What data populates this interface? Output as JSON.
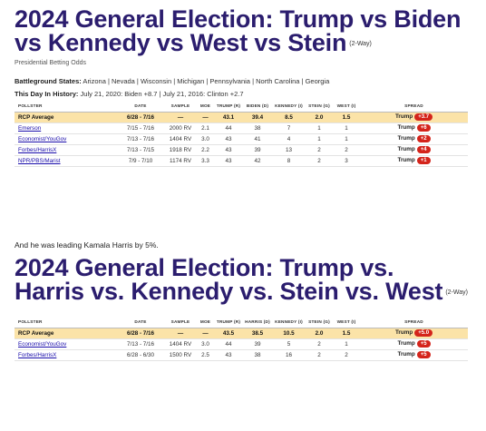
{
  "card1": {
    "title": "2024 General Election: Trump vs Biden vs Kennedy vs West vs Stein",
    "tag": "(2-Way)",
    "subtitle": "Presidential Betting Odds",
    "battleground_label": "Battleground States:",
    "battleground_text": " Arizona | Nevada | Wisconsin | Michigan | Pennsylvania | North Carolina | Georgia",
    "history_label": "This Day In History:",
    "history_text": " July 21, 2020: Biden +8.7 | July 21, 2016: Clinton +2.7",
    "headers": [
      "POLLSTER",
      "DATE",
      "SAMPLE",
      "MOE",
      "TRUMP (R)",
      "BIDEN (D)",
      "KENNEDY (I)",
      "STEIN (G)",
      "WEST (I)",
      "SPREAD"
    ],
    "rows": [
      {
        "pollster": "RCP Average",
        "date": "6/28 - 7/16",
        "sample": "—",
        "moe": "—",
        "c1": "43.1",
        "c2": "39.4",
        "c3": "8.5",
        "c4": "2.0",
        "c5": "1.5",
        "spread_name": "Trump",
        "spread_val": "+3.7"
      },
      {
        "pollster": "Emerson",
        "date": "7/15 - 7/16",
        "sample": "2000 RV",
        "moe": "2.1",
        "c1": "44",
        "c2": "38",
        "c3": "7",
        "c4": "1",
        "c5": "1",
        "spread_name": "Trump",
        "spread_val": "+6"
      },
      {
        "pollster": "Economist/YouGov",
        "date": "7/13 - 7/16",
        "sample": "1404 RV",
        "moe": "3.0",
        "c1": "43",
        "c2": "41",
        "c3": "4",
        "c4": "1",
        "c5": "1",
        "spread_name": "Trump",
        "spread_val": "+2"
      },
      {
        "pollster": "Forbes/HarrisX",
        "date": "7/13 - 7/15",
        "sample": "1918 RV",
        "moe": "2.2",
        "c1": "43",
        "c2": "39",
        "c3": "13",
        "c4": "2",
        "c5": "2",
        "spread_name": "Trump",
        "spread_val": "+4"
      },
      {
        "pollster": "NPR/PBS/Marist",
        "date": "7/9 - 7/10",
        "sample": "1174 RV",
        "moe": "3.3",
        "c1": "43",
        "c2": "42",
        "c3": "8",
        "c4": "2",
        "c5": "3",
        "spread_name": "Trump",
        "spread_val": "+1"
      }
    ]
  },
  "between_text": "And he was leading Kamala Harris by 5%.",
  "card2": {
    "title": "2024 General Election: Trump vs. Harris vs. Kennedy vs. Stein vs. West",
    "tag": "(2-Way)",
    "headers": [
      "POLLSTER",
      "DATE",
      "SAMPLE",
      "MOE",
      "TRUMP (R)",
      "HARRIS (D)",
      "KENNEDY (I)",
      "STEIN (G)",
      "WEST (I)",
      "SPREAD"
    ],
    "rows": [
      {
        "pollster": "RCP Average",
        "date": "6/28 - 7/16",
        "sample": "—",
        "moe": "—",
        "c1": "43.5",
        "c2": "38.5",
        "c3": "10.5",
        "c4": "2.0",
        "c5": "1.5",
        "spread_name": "Trump",
        "spread_val": "+5.0"
      },
      {
        "pollster": "Economist/YouGov",
        "date": "7/13 - 7/16",
        "sample": "1404 RV",
        "moe": "3.0",
        "c1": "44",
        "c2": "39",
        "c3": "5",
        "c4": "2",
        "c5": "1",
        "spread_name": "Trump",
        "spread_val": "+5"
      },
      {
        "pollster": "Forbes/HarrisX",
        "date": "6/28 - 6/30",
        "sample": "1500 RV",
        "moe": "2.5",
        "c1": "43",
        "c2": "38",
        "c3": "16",
        "c4": "2",
        "c5": "2",
        "spread_name": "Trump",
        "spread_val": "+5"
      }
    ]
  },
  "colors": {
    "title": "#2b1d6e",
    "rcp_row": "#fbe3a8",
    "badge": "#d4241b",
    "link": "#1a0dab"
  }
}
